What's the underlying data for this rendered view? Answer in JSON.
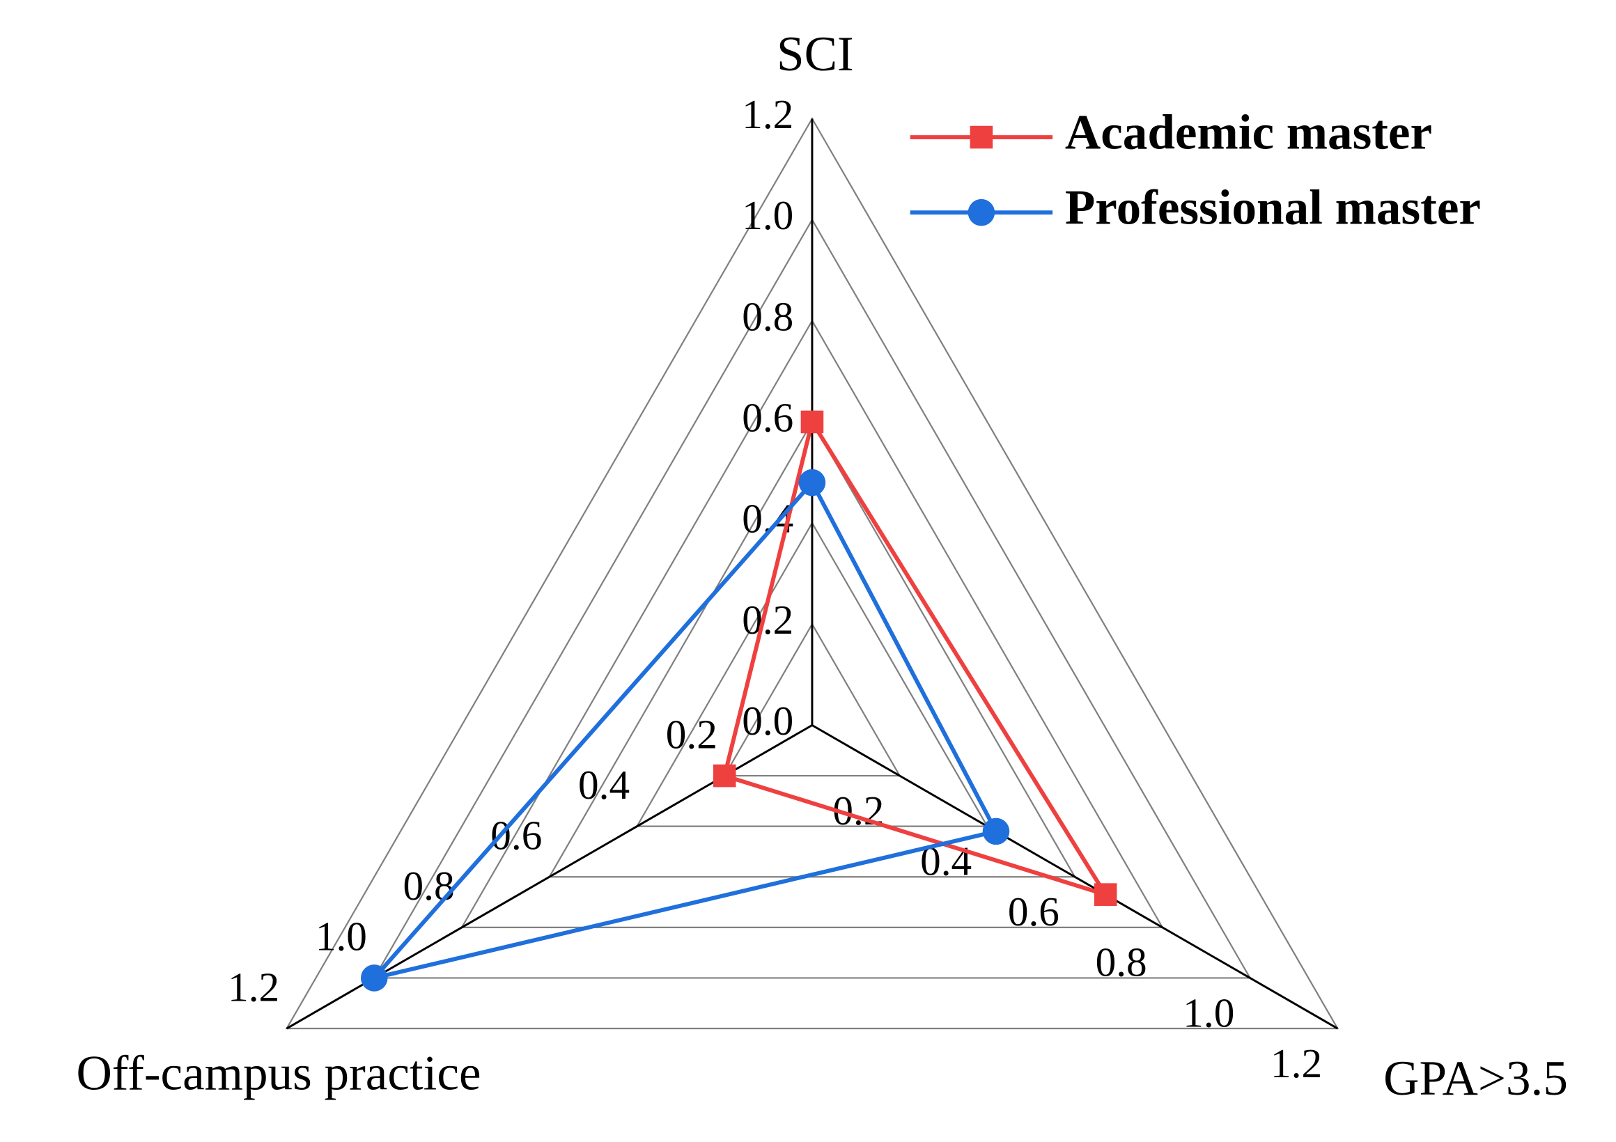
{
  "chart_data": {
    "type": "radar",
    "categories": [
      "SCI",
      "GPA>3.5",
      "Off-campus practice"
    ],
    "series": [
      {
        "name": "Academic master",
        "color": "#ef4040",
        "marker": "square",
        "values": [
          0.6,
          0.67,
          0.2
        ]
      },
      {
        "name": "Professional master",
        "color": "#1f6fdc",
        "marker": "circle",
        "values": [
          0.48,
          0.42,
          1.0
        ]
      }
    ],
    "ylim": [
      0,
      1.2
    ],
    "yticks": [
      {
        "value": 0,
        "label": "0.0"
      },
      {
        "value": 0.2,
        "label": "0.2"
      },
      {
        "value": 0.4,
        "label": "0.4"
      },
      {
        "value": 0.6,
        "label": "0.6"
      },
      {
        "value": 0.8,
        "label": "0.8"
      },
      {
        "value": 1.0,
        "label": "1.0"
      },
      {
        "value": 1.2,
        "label": "1.2"
      }
    ],
    "grid": true,
    "legend": "top right"
  }
}
